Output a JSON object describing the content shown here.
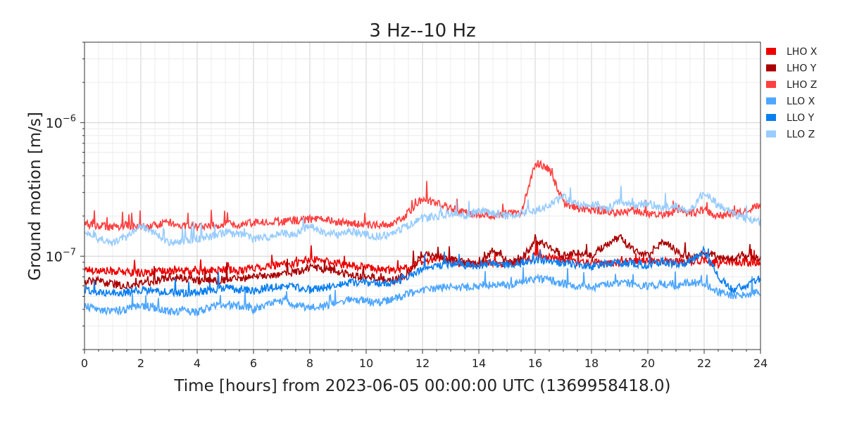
{
  "chart_data": {
    "type": "line",
    "title": "3 Hz--10 Hz",
    "xlabel": "Time [hours] from 2023-06-05 00:00:00 UTC (1369958418.0)",
    "ylabel": "Ground motion [m/s]",
    "x_range": [
      0,
      24
    ],
    "y_range": [
      2e-08,
      4e-06
    ],
    "y_scale": "log",
    "x_ticks": [
      0,
      2,
      4,
      6,
      8,
      10,
      12,
      14,
      16,
      18,
      20,
      22,
      24
    ],
    "y_ticks": [
      {
        "value": 1e-07,
        "base": "10",
        "exp": "−7"
      },
      {
        "value": 1e-06,
        "base": "10",
        "exp": "−6"
      }
    ],
    "grid": true,
    "legend_position": "right",
    "series": [
      {
        "name": "LHO X",
        "color": "#ee0000",
        "x": [
          0,
          0.5,
          1,
          1.5,
          2,
          2.5,
          3,
          3.5,
          4,
          4.5,
          5,
          5.5,
          6,
          6.5,
          7,
          7.5,
          8,
          8.5,
          9,
          9.5,
          10,
          10.5,
          11,
          11.5,
          12,
          12.5,
          13,
          13.5,
          14,
          14.5,
          15,
          15.5,
          16,
          16.5,
          17,
          17.5,
          18,
          18.5,
          19,
          19.5,
          20,
          20.5,
          21,
          21.5,
          22,
          22.5,
          23,
          23.5,
          24
        ],
        "y": [
          8e-08,
          7.8e-08,
          7.7e-08,
          7.6e-08,
          7.5e-08,
          7.6e-08,
          7.8e-08,
          7.7e-08,
          7.6e-08,
          7.8e-08,
          7.9e-08,
          7.8e-08,
          8.2e-08,
          8.4e-08,
          8.6e-08,
          8.8e-08,
          9.5e-08,
          9.2e-08,
          8.8e-08,
          8.5e-08,
          8.2e-08,
          8e-08,
          7.8e-08,
          8.2e-08,
          9e-08,
          9.6e-08,
          9.2e-08,
          8.6e-08,
          8.8e-08,
          9e-08,
          8.8e-08,
          9.2e-08,
          1e-07,
          9.8e-08,
          9.4e-08,
          9e-08,
          9.2e-08,
          8.8e-08,
          9e-08,
          9.2e-08,
          9.4e-08,
          9e-08,
          9.2e-08,
          9e-08,
          9.4e-08,
          8.8e-08,
          9.2e-08,
          9e-08,
          8.8e-08
        ]
      },
      {
        "name": "LHO Y",
        "color": "#aa0000",
        "x": [
          0,
          0.5,
          1,
          1.5,
          2,
          2.5,
          3,
          3.5,
          4,
          4.5,
          5,
          5.5,
          6,
          6.5,
          7,
          7.5,
          8,
          8.5,
          9,
          9.5,
          10,
          10.5,
          11,
          11.5,
          12,
          12.5,
          13,
          13.5,
          14,
          14.5,
          15,
          15.5,
          16,
          16.5,
          17,
          17.5,
          18,
          18.5,
          19,
          19.5,
          20,
          20.5,
          21,
          21.5,
          22,
          22.5,
          23,
          23.5,
          24
        ],
        "y": [
          6.5e-08,
          6.5e-08,
          6.2e-08,
          6e-08,
          6.3e-08,
          6.5e-08,
          7e-08,
          6.8e-08,
          6.6e-08,
          6.5e-08,
          6.7e-08,
          6.8e-08,
          7e-08,
          7.2e-08,
          7.4e-08,
          7.6e-08,
          8.2e-08,
          8e-08,
          7.6e-08,
          7.2e-08,
          7e-08,
          6.8e-08,
          6.6e-08,
          7.4e-08,
          1.05e-07,
          1e-07,
          9.5e-08,
          9e-08,
          8.6e-08,
          1.1e-07,
          9e-08,
          9.4e-08,
          1.3e-07,
          1.2e-07,
          1e-07,
          1.05e-07,
          1e-07,
          1.2e-07,
          1.4e-07,
          1.1e-07,
          1e-07,
          1.3e-07,
          1.1e-07,
          9.5e-08,
          1.05e-07,
          1e-07,
          9.5e-08,
          1e-07,
          9.5e-08
        ]
      },
      {
        "name": "LHO Z",
        "color": "#ff4040",
        "x": [
          0,
          0.5,
          1,
          1.5,
          2,
          2.5,
          3,
          3.5,
          4,
          4.5,
          5,
          5.5,
          6,
          6.5,
          7,
          7.5,
          8,
          8.5,
          9,
          9.5,
          10,
          10.5,
          11,
          11.5,
          12,
          12.5,
          13,
          13.5,
          14,
          14.5,
          15,
          15.5,
          16,
          16.5,
          17,
          17.5,
          18,
          18.5,
          19,
          19.5,
          20,
          20.5,
          21,
          21.5,
          22,
          22.5,
          23,
          23.5,
          24
        ],
        "y": [
          1.75e-07,
          1.7e-07,
          1.65e-07,
          1.7e-07,
          1.65e-07,
          1.7e-07,
          1.8e-07,
          1.7e-07,
          1.65e-07,
          1.7e-07,
          1.75e-07,
          1.72e-07,
          1.78e-07,
          1.8e-07,
          1.82e-07,
          1.85e-07,
          1.9e-07,
          1.88e-07,
          1.8e-07,
          1.75e-07,
          1.72e-07,
          1.7e-07,
          1.75e-07,
          2.1e-07,
          2.7e-07,
          2.5e-07,
          2.3e-07,
          2.1e-07,
          2.1e-07,
          2e-07,
          2.1e-07,
          2.1e-07,
          5e-07,
          4.5e-07,
          2.5e-07,
          2.3e-07,
          2.2e-07,
          2.2e-07,
          2.1e-07,
          2.2e-07,
          2.1e-07,
          2e-07,
          2.2e-07,
          2.1e-07,
          2.2e-07,
          2e-07,
          2.1e-07,
          2.2e-07,
          2.4e-07
        ]
      },
      {
        "name": "LLO X",
        "color": "#4da6ff",
        "x": [
          0,
          0.5,
          1,
          1.5,
          2,
          2.5,
          3,
          3.5,
          4,
          4.5,
          5,
          5.5,
          6,
          6.5,
          7,
          7.5,
          8,
          8.5,
          9,
          9.5,
          10,
          10.5,
          11,
          11.5,
          12,
          12.5,
          13,
          13.5,
          14,
          14.5,
          15,
          15.5,
          16,
          16.5,
          17,
          17.5,
          18,
          18.5,
          19,
          19.5,
          20,
          20.5,
          21,
          21.5,
          22,
          22.5,
          23,
          23.5,
          24
        ],
        "y": [
          4.2e-08,
          4e-08,
          3.9e-08,
          4e-08,
          4.3e-08,
          4.1e-08,
          3.8e-08,
          3.9e-08,
          3.8e-08,
          4.2e-08,
          4.4e-08,
          4.2e-08,
          4e-08,
          4.4e-08,
          4.6e-08,
          4.3e-08,
          4.1e-08,
          4.2e-08,
          4.6e-08,
          4.8e-08,
          4.6e-08,
          4.5e-08,
          4.8e-08,
          5.2e-08,
          5.6e-08,
          5.8e-08,
          6e-08,
          5.8e-08,
          6e-08,
          6.2e-08,
          6e-08,
          6.4e-08,
          6.8e-08,
          6.6e-08,
          6.2e-08,
          6e-08,
          5.8e-08,
          6.2e-08,
          6.4e-08,
          6.2e-08,
          6e-08,
          6.2e-08,
          6e-08,
          6.4e-08,
          6.2e-08,
          5.4e-08,
          5e-08,
          5.2e-08,
          5.4e-08
        ]
      },
      {
        "name": "LLO Y",
        "color": "#0a7ff0",
        "x": [
          0,
          0.5,
          1,
          1.5,
          2,
          2.5,
          3,
          3.5,
          4,
          4.5,
          5,
          5.5,
          6,
          6.5,
          7,
          7.5,
          8,
          8.5,
          9,
          9.5,
          10,
          10.5,
          11,
          11.5,
          12,
          12.5,
          13,
          13.5,
          14,
          14.5,
          15,
          15.5,
          16,
          16.5,
          17,
          17.5,
          18,
          18.5,
          19,
          19.5,
          20,
          20.5,
          21,
          21.5,
          22,
          22.5,
          23,
          23.5,
          24
        ],
        "y": [
          5.6e-08,
          5.4e-08,
          5.3e-08,
          5.4e-08,
          5.6e-08,
          5.5e-08,
          5.4e-08,
          5.3e-08,
          5.4e-08,
          5.6e-08,
          5.8e-08,
          5.6e-08,
          5.5e-08,
          5.8e-08,
          6e-08,
          5.8e-08,
          5.6e-08,
          5.8e-08,
          6.2e-08,
          6.4e-08,
          6.3e-08,
          6.2e-08,
          6.4e-08,
          7e-08,
          8e-08,
          8.5e-08,
          8.8e-08,
          8.6e-08,
          8.5e-08,
          8.8e-08,
          8.6e-08,
          8.9e-08,
          9.4e-08,
          9.2e-08,
          8.8e-08,
          8.6e-08,
          8.4e-08,
          8.8e-08,
          9e-08,
          8.8e-08,
          8.6e-08,
          9e-08,
          8.8e-08,
          9.2e-08,
          1.1e-07,
          7e-08,
          5.6e-08,
          6e-08,
          6.8e-08
        ]
      },
      {
        "name": "LLO Z",
        "color": "#99ccff",
        "x": [
          0,
          0.5,
          1,
          1.5,
          2,
          2.5,
          3,
          3.5,
          4,
          4.5,
          5,
          5.5,
          6,
          6.5,
          7,
          7.5,
          8,
          8.5,
          9,
          9.5,
          10,
          10.5,
          11,
          11.5,
          12,
          12.5,
          13,
          13.5,
          14,
          14.5,
          15,
          15.5,
          16,
          16.5,
          17,
          17.5,
          18,
          18.5,
          19,
          19.5,
          20,
          20.5,
          21,
          21.5,
          22,
          22.5,
          23,
          23.5,
          24
        ],
        "y": [
          1.55e-07,
          1.35e-07,
          1.25e-07,
          1.4e-07,
          1.7e-07,
          1.5e-07,
          1.25e-07,
          1.3e-07,
          1.35e-07,
          1.4e-07,
          1.5e-07,
          1.45e-07,
          1.35e-07,
          1.4e-07,
          1.5e-07,
          1.45e-07,
          1.7e-07,
          1.5e-07,
          1.45e-07,
          1.55e-07,
          1.45e-07,
          1.4e-07,
          1.5e-07,
          1.7e-07,
          1.9e-07,
          2e-07,
          2.1e-07,
          2e-07,
          2.2e-07,
          2.1e-07,
          2e-07,
          2.1e-07,
          2.2e-07,
          2.4e-07,
          2.8e-07,
          2.4e-07,
          2.5e-07,
          2.2e-07,
          2.6e-07,
          2.4e-07,
          2.5e-07,
          2.3e-07,
          2.4e-07,
          2.2e-07,
          3e-07,
          2.4e-07,
          2.1e-07,
          1.9e-07,
          1.8e-07
        ]
      }
    ]
  }
}
